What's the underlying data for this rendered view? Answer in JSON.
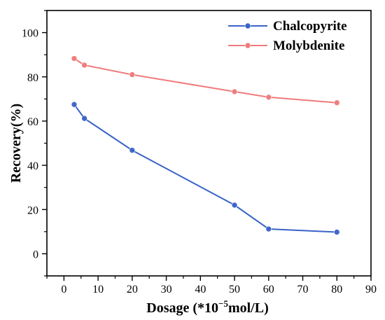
{
  "chart_data": {
    "type": "line",
    "xlabel": "Dosage (*10",
    "xlabel_sup": "−5",
    "xlabel_suffix": "mol/L)",
    "ylabel": "Recovery(%)",
    "xlim": [
      -5,
      90
    ],
    "ylim": [
      -10,
      110
    ],
    "xticks": [
      0,
      10,
      20,
      30,
      40,
      50,
      60,
      70,
      80,
      90
    ],
    "yticks": [
      0,
      20,
      40,
      60,
      80,
      100
    ],
    "legend_position": "top-right",
    "series": [
      {
        "name": "Chalcopyrite",
        "color": "#3a63c8",
        "x": [
          3,
          6,
          20,
          50,
          60,
          80
        ],
        "y": [
          67.5,
          61.2,
          46.8,
          22,
          11.2,
          9.8
        ]
      },
      {
        "name": "Molybdenite",
        "color": "#ef7b7b",
        "x": [
          3,
          6,
          20,
          50,
          60,
          80
        ],
        "y": [
          88.3,
          85.3,
          81.0,
          73.3,
          70.8,
          68.3
        ]
      }
    ]
  }
}
